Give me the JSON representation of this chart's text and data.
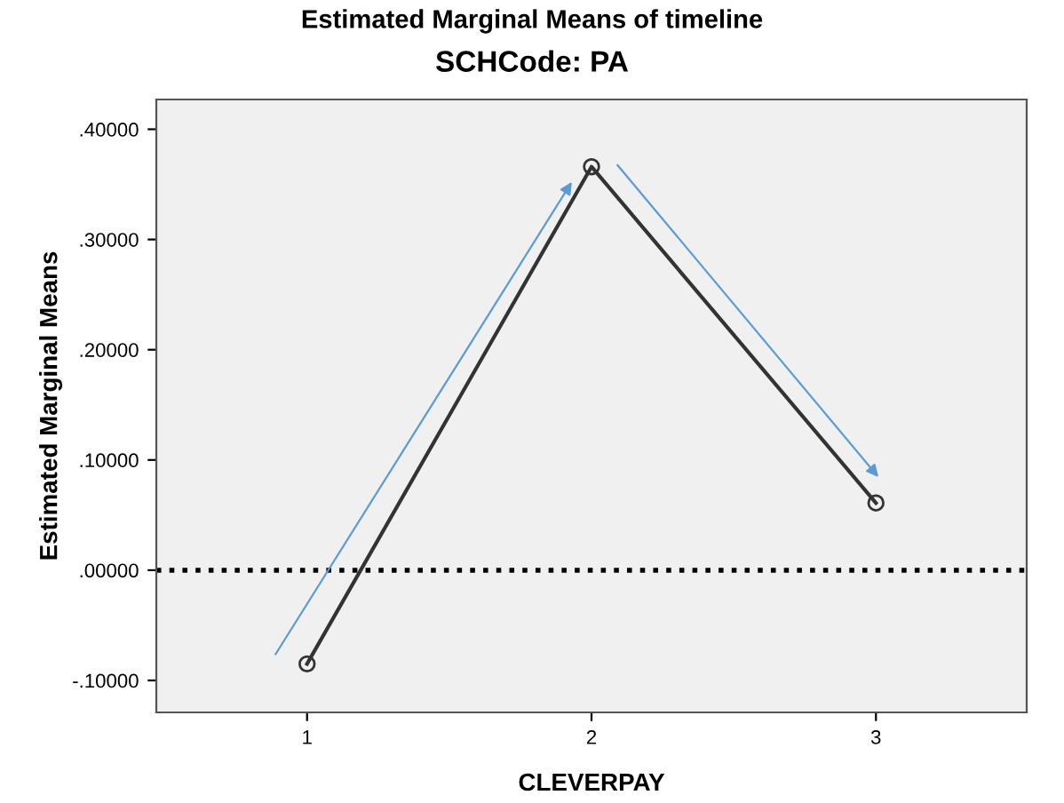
{
  "chart_data": {
    "type": "line",
    "title": "Estimated Marginal Means of timeline",
    "subtitle": "SCHCode: PA",
    "xlabel": "CLEVERPAY",
    "ylabel": "Estimated Marginal Means",
    "categories": [
      "1",
      "2",
      "3"
    ],
    "series": [
      {
        "color": "#333333",
        "values": [
          -0.085,
          0.366,
          0.061
        ]
      }
    ],
    "ylim": [
      -0.129,
      0.427
    ],
    "yticks": [
      {
        "value": -0.1,
        "label": "-.10000"
      },
      {
        "value": 0,
        "label": ".00000"
      },
      {
        "value": 0.1,
        "label": ".10000"
      },
      {
        "value": 0.2,
        "label": ".20000"
      },
      {
        "value": 0.3,
        "label": ".30000"
      },
      {
        "value": 0.4,
        "label": ".40000"
      }
    ],
    "ref_lines": [
      {
        "axis": "y",
        "value": 0,
        "color": "#000000",
        "line_style": "dotted"
      }
    ],
    "marker": "circle",
    "line_style": "solid",
    "grid": false
  }
}
